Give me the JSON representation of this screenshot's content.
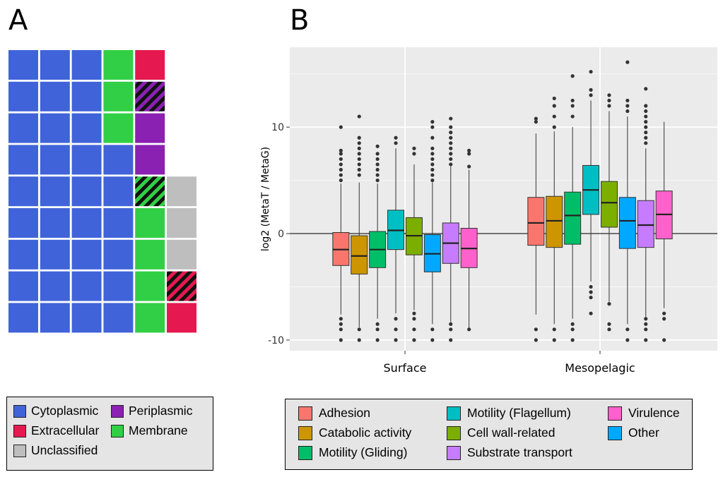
{
  "panel_labels": {
    "a": "A",
    "b": "B"
  },
  "colors": {
    "cytoplasmic": "#4163d9",
    "periplasmic": "#8a21b3",
    "extracellular": "#e5194f",
    "membrane": "#31cf45",
    "unclassified": "#bebebe",
    "adhesion": "#f8766d",
    "catabolic_activity": "#cd9600",
    "motility_gliding": "#00be67",
    "motility_flagellum": "#00bfc4",
    "cell_wall_related": "#7cae00",
    "substrate_transport": "#c77cff",
    "virulence": "#ff61cc",
    "other": "#00a9ff"
  },
  "legend_a": {
    "items": [
      {
        "label": "Cytoplasmic",
        "color_key": "cytoplasmic"
      },
      {
        "label": "Periplasmic",
        "color_key": "periplasmic"
      },
      {
        "label": "Extracellular",
        "color_key": "extracellular"
      },
      {
        "label": "Membrane",
        "color_key": "membrane"
      },
      {
        "label": "Unclassified",
        "color_key": "unclassified"
      }
    ]
  },
  "legend_b": {
    "items": [
      {
        "label": "Adhesion",
        "color_key": "adhesion"
      },
      {
        "label": "Catabolic activity",
        "color_key": "catabolic_activity"
      },
      {
        "label": "Motility (Gliding)",
        "color_key": "motility_gliding"
      },
      {
        "label": "Motility (Flagellum)",
        "color_key": "motility_flagellum"
      },
      {
        "label": "Cell wall-related",
        "color_key": "cell_wall_related"
      },
      {
        "label": "Substrate transport",
        "color_key": "substrate_transport"
      },
      {
        "label": "Virulence",
        "color_key": "virulence"
      },
      {
        "label": "Other",
        "color_key": "other"
      }
    ]
  },
  "chart_data": [
    {
      "type": "waffle",
      "rows": [
        [
          "cytoplasmic",
          "cytoplasmic",
          "cytoplasmic",
          "membrane",
          "extracellular",
          null
        ],
        [
          "cytoplasmic",
          "cytoplasmic",
          "cytoplasmic",
          "membrane",
          "periplasmic+cytoplasmic",
          null
        ],
        [
          "cytoplasmic",
          "cytoplasmic",
          "cytoplasmic",
          "membrane",
          "periplasmic",
          null
        ],
        [
          "cytoplasmic",
          "cytoplasmic",
          "cytoplasmic",
          "cytoplasmic",
          "periplasmic",
          null
        ],
        [
          "cytoplasmic",
          "cytoplasmic",
          "cytoplasmic",
          "cytoplasmic",
          "membrane+cytoplasmic",
          "unclassified"
        ],
        [
          "cytoplasmic",
          "cytoplasmic",
          "cytoplasmic",
          "cytoplasmic",
          "membrane",
          "unclassified"
        ],
        [
          "cytoplasmic",
          "cytoplasmic",
          "cytoplasmic",
          "cytoplasmic",
          "membrane",
          "unclassified"
        ],
        [
          "cytoplasmic",
          "cytoplasmic",
          "cytoplasmic",
          "cytoplasmic",
          "membrane",
          "extracellular+cytoplasmic"
        ],
        [
          "cytoplasmic",
          "cytoplasmic",
          "cytoplasmic",
          "cytoplasmic",
          "membrane",
          "extracellular"
        ]
      ]
    },
    {
      "type": "boxplot",
      "ylabel": "log2 (MetaT / MetaG)",
      "ylim": [
        -11,
        17.5
      ],
      "yticks": [
        -10,
        0,
        10
      ],
      "categories": [
        "Surface",
        "Mesopelagic"
      ],
      "series": [
        {
          "name": "Adhesion",
          "color_key": "adhesion",
          "boxes": [
            {
              "q1": -3.0,
              "median": -1.5,
              "q3": 0.1,
              "whisker_low": -7.6,
              "whisker_high": 4.7,
              "outliers": [
                5.0,
                5.5,
                6.0,
                6.5,
                7.0,
                7.5,
                7.8,
                10.0,
                -8.0,
                -8.5,
                -9.0,
                -10.0
              ]
            },
            {
              "q1": -1.1,
              "median": 1.0,
              "q3": 3.4,
              "whisker_low": -7.6,
              "whisker_high": 9.4,
              "outliers": [
                10.5,
                10.8,
                -9.0,
                -10.0
              ]
            }
          ]
        },
        {
          "name": "Catabolic activity",
          "color_key": "catabolic_activity",
          "boxes": [
            {
              "q1": -3.8,
              "median": -2.1,
              "q3": -0.2,
              "whisker_low": -8.8,
              "whisker_high": 4.8,
              "outliers": [
                5.5,
                6.0,
                6.5,
                7.0,
                7.5,
                8.0,
                8.5,
                9.0,
                11.0,
                -9.0,
                -10.0
              ]
            },
            {
              "q1": -1.3,
              "median": 1.2,
              "q3": 3.5,
              "whisker_low": -8.5,
              "whisker_high": 9.6,
              "outliers": [
                10.0,
                11.0,
                12.0,
                12.7,
                -9.0,
                -10.0
              ]
            }
          ]
        },
        {
          "name": "Motility (Gliding)",
          "color_key": "motility_gliding",
          "boxes": [
            {
              "q1": -3.2,
              "median": -1.5,
              "q3": 0.2,
              "whisker_low": -8.0,
              "whisker_high": 4.7,
              "outliers": [
                5.0,
                5.5,
                6.0,
                6.5,
                7.0,
                7.5,
                8.2,
                -8.5,
                -9.0,
                -10.0
              ]
            },
            {
              "q1": -1.0,
              "median": 1.7,
              "q3": 3.9,
              "whisker_low": -8.0,
              "whisker_high": 10.0,
              "outliers": [
                11.0,
                12.0,
                12.5,
                14.8,
                -8.5,
                -9.0,
                -10.0
              ]
            }
          ]
        },
        {
          "name": "Motility (Flagellum)",
          "color_key": "motility_flagellum",
          "boxes": [
            {
              "q1": -1.5,
              "median": 0.3,
              "q3": 2.2,
              "whisker_low": -7.5,
              "whisker_high": 8.0,
              "outliers": [
                8.5,
                9.0,
                -8.0,
                -9.0,
                -10.0
              ]
            },
            {
              "q1": 1.8,
              "median": 4.1,
              "q3": 6.4,
              "whisker_low": -4.5,
              "whisker_high": 12.5,
              "outliers": [
                13.0,
                13.5,
                15.2,
                -5.0,
                -5.5,
                -6.0,
                -7.5
              ]
            }
          ]
        },
        {
          "name": "Cell wall-related",
          "color_key": "cell_wall_related",
          "boxes": [
            {
              "q1": -2.0,
              "median": -0.2,
              "q3": 1.5,
              "whisker_low": -7.2,
              "whisker_high": 6.5,
              "outliers": [
                7.5,
                8.0,
                -7.5,
                -8.0,
                -9.0,
                -10.0
              ]
            },
            {
              "q1": 0.6,
              "median": 2.9,
              "q3": 4.9,
              "whisker_low": -6.4,
              "whisker_high": 11.5,
              "outliers": [
                12.0,
                12.5,
                13.0,
                -6.6,
                -8.5,
                -9.0
              ]
            }
          ]
        },
        {
          "name": "Other",
          "color_key": "other",
          "boxes": [
            {
              "q1": -3.6,
              "median": -1.9,
              "q3": -0.1,
              "whisker_low": -8.5,
              "whisker_high": 4.8,
              "outliers": [
                5.0,
                5.5,
                6.0,
                6.5,
                7.0,
                7.5,
                8.0,
                9.0,
                10.0,
                10.5,
                -9.0,
                -10.0
              ]
            },
            {
              "q1": -1.4,
              "median": 1.2,
              "q3": 3.4,
              "whisker_low": -8.5,
              "whisker_high": 11.0,
              "outliers": [
                11.5,
                12.0,
                12.5,
                16.1,
                -9.0,
                -10.0
              ]
            }
          ]
        },
        {
          "name": "Substrate transport",
          "color_key": "substrate_transport",
          "boxes": [
            {
              "q1": -2.8,
              "median": -0.9,
              "q3": 1.0,
              "whisker_low": -8.3,
              "whisker_high": 6.3,
              "outliers": [
                6.5,
                7.0,
                7.5,
                8.0,
                8.5,
                9.0,
                9.5,
                10.0,
                10.8,
                -8.5,
                -9.0,
                -10.0
              ]
            },
            {
              "q1": -1.3,
              "median": 0.8,
              "q3": 3.1,
              "whisker_low": -7.8,
              "whisker_high": 8.0,
              "outliers": [
                8.5,
                9.0,
                9.5,
                10.0,
                10.5,
                11.0,
                11.5,
                12.0,
                13.6,
                -8.0,
                -8.5,
                -9.0,
                -10.0
              ]
            }
          ]
        },
        {
          "name": "Virulence",
          "color_key": "virulence",
          "boxes": [
            {
              "q1": -3.2,
              "median": -1.4,
              "q3": 0.5,
              "whisker_low": -9.0,
              "whisker_high": 6.0,
              "outliers": [
                6.3,
                7.5,
                7.8,
                -9.0
              ]
            },
            {
              "q1": -0.5,
              "median": 1.8,
              "q3": 4.0,
              "whisker_low": -7.0,
              "whisker_high": 10.5,
              "outliers": [
                -7.5,
                -8.0,
                -10.0
              ]
            }
          ]
        }
      ]
    }
  ]
}
